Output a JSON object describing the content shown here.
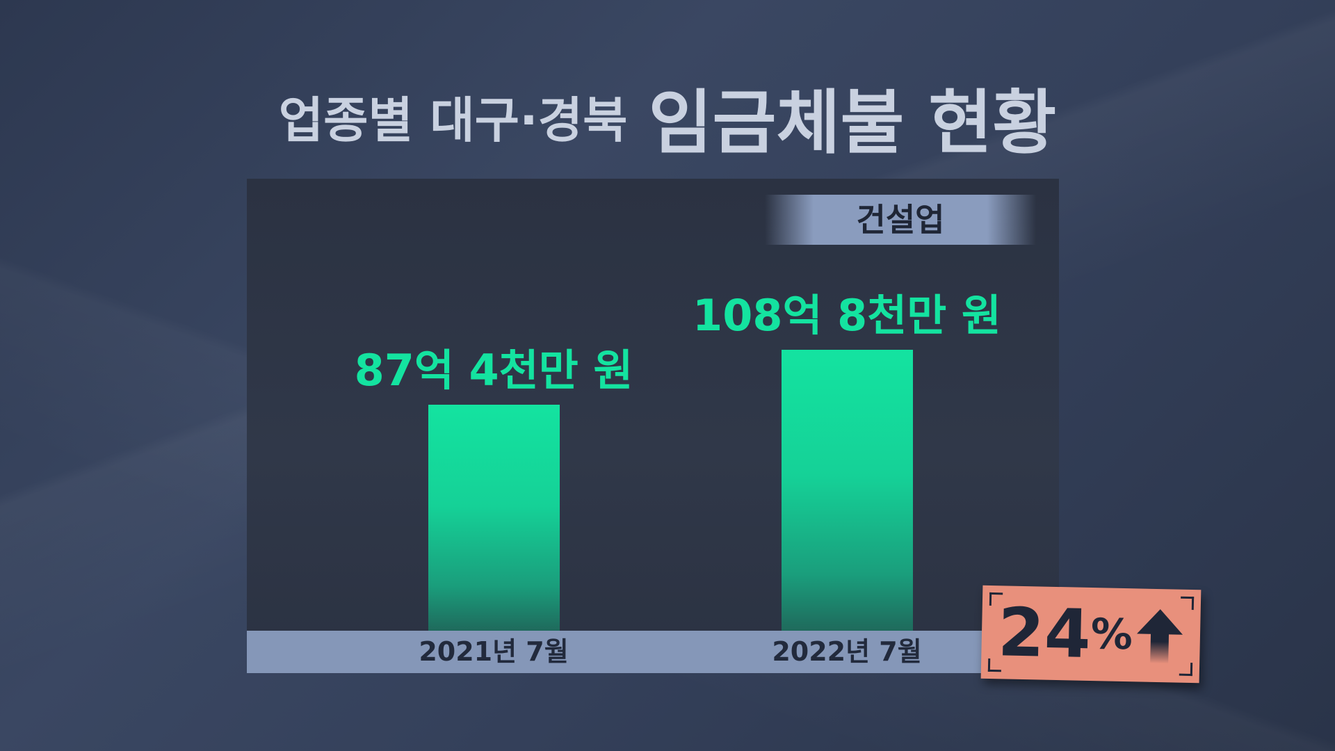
{
  "title": {
    "sub": "업종별 대구·경북",
    "main": "임금체불 현황"
  },
  "chart_data": {
    "type": "bar",
    "title": "업종별 대구·경북 임금체불 현황",
    "category_label": "건설업",
    "categories": [
      "2021년 7월",
      "2022년 7월"
    ],
    "values": [
      87.4,
      108.8
    ],
    "unit": "억 원",
    "data_labels": [
      "87억 4천만 원",
      "108억 8천만 원"
    ],
    "annotation": {
      "number": "24",
      "percent": "%",
      "direction": "up",
      "icon": "arrow-up-icon"
    },
    "ylim": [
      0,
      108.8
    ],
    "grid": false,
    "colors": {
      "bar": "#14e3a0",
      "badge": "#e8907c",
      "axis_band": "#8597b8"
    }
  }
}
